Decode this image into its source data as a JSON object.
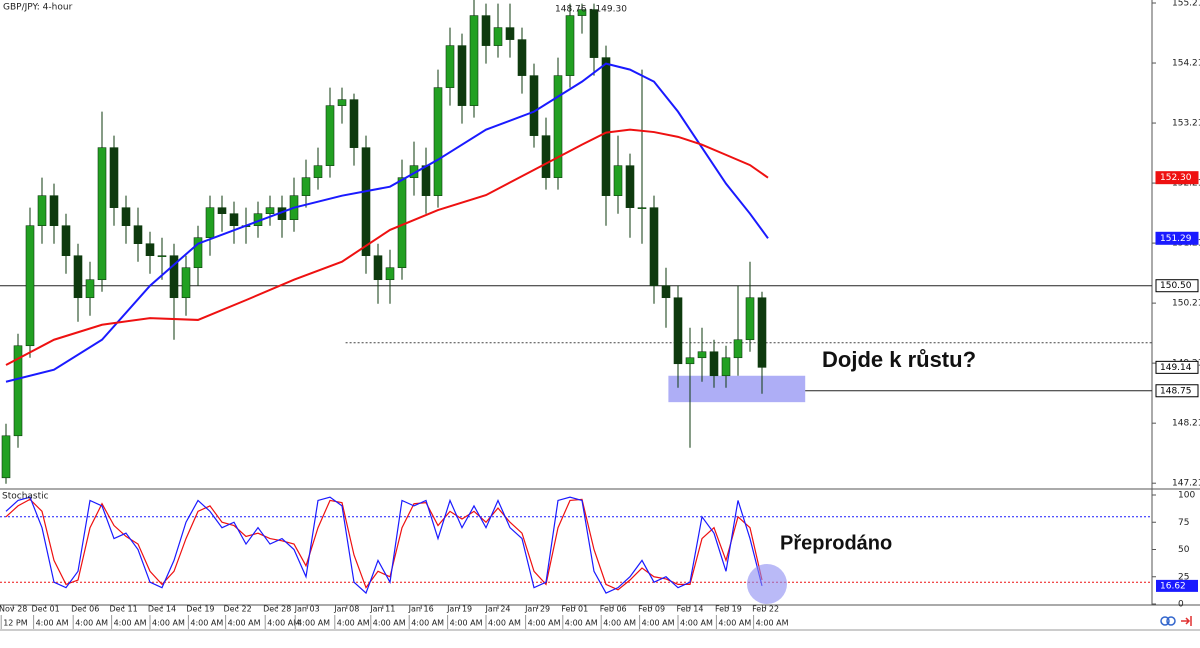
{
  "chart_data": [
    {
      "type": "candlestick",
      "title": "GBP/JPY: 4-hour",
      "annotation": "148.76 - 149.30",
      "callout": "Dojde k růstu?",
      "xlim": [
        0,
        96
      ],
      "ylim": [
        147.13,
        155.26
      ],
      "yticks": [
        155.21,
        154.21,
        153.21,
        152.21,
        151.21,
        150.21,
        149.21,
        148.21,
        147.21
      ],
      "up_color": "#22a022",
      "down_color": "#0e3a0e",
      "ohlc": [
        [
          147.3,
          148.2,
          147.2,
          148.0
        ],
        [
          148.0,
          149.7,
          147.8,
          149.5
        ],
        [
          149.5,
          151.8,
          149.3,
          151.5
        ],
        [
          151.5,
          152.3,
          151.2,
          152.0
        ],
        [
          152.0,
          152.2,
          151.2,
          151.5
        ],
        [
          151.5,
          151.7,
          150.7,
          151.0
        ],
        [
          151.0,
          151.2,
          149.9,
          150.3
        ],
        [
          150.3,
          150.9,
          150.0,
          150.6
        ],
        [
          150.6,
          153.4,
          150.4,
          152.8
        ],
        [
          152.8,
          153.0,
          151.5,
          151.8
        ],
        [
          151.8,
          152.0,
          151.2,
          151.5
        ],
        [
          151.5,
          151.8,
          150.9,
          151.2
        ],
        [
          151.2,
          151.4,
          150.7,
          151.0
        ],
        [
          151.0,
          151.3,
          150.6,
          151.0
        ],
        [
          151.0,
          151.2,
          149.6,
          150.3
        ],
        [
          150.3,
          151.0,
          150.0,
          150.8
        ],
        [
          150.8,
          151.5,
          150.5,
          151.3
        ],
        [
          151.3,
          152.0,
          151.0,
          151.8
        ],
        [
          151.8,
          152.0,
          151.4,
          151.7
        ],
        [
          151.7,
          151.9,
          151.2,
          151.5
        ],
        [
          151.5,
          151.8,
          151.2,
          151.5
        ],
        [
          151.5,
          151.9,
          151.3,
          151.7
        ],
        [
          151.7,
          152.0,
          151.5,
          151.8
        ],
        [
          151.8,
          152.0,
          151.3,
          151.6
        ],
        [
          151.6,
          152.3,
          151.4,
          152.0
        ],
        [
          152.0,
          152.6,
          151.8,
          152.3
        ],
        [
          152.3,
          152.8,
          152.1,
          152.5
        ],
        [
          152.5,
          153.8,
          152.3,
          153.5
        ],
        [
          153.5,
          153.8,
          153.2,
          153.6
        ],
        [
          153.6,
          153.7,
          152.5,
          152.8
        ],
        [
          152.8,
          153.0,
          150.7,
          151.0
        ],
        [
          151.0,
          151.2,
          150.2,
          150.6
        ],
        [
          150.6,
          151.1,
          150.2,
          150.8
        ],
        [
          150.8,
          152.6,
          150.6,
          152.3
        ],
        [
          152.3,
          152.9,
          152.0,
          152.5
        ],
        [
          152.5,
          152.8,
          151.7,
          152.0
        ],
        [
          152.0,
          154.1,
          151.8,
          153.8
        ],
        [
          153.8,
          154.8,
          153.5,
          154.5
        ],
        [
          154.5,
          154.7,
          153.2,
          153.5
        ],
        [
          153.5,
          155.3,
          153.3,
          155.0
        ],
        [
          155.0,
          155.2,
          154.2,
          154.5
        ],
        [
          154.5,
          155.2,
          154.3,
          154.8
        ],
        [
          154.8,
          155.2,
          154.3,
          154.6
        ],
        [
          154.6,
          154.8,
          153.7,
          154.0
        ],
        [
          154.0,
          154.2,
          152.8,
          153.0
        ],
        [
          153.0,
          153.3,
          152.1,
          152.3
        ],
        [
          152.3,
          154.3,
          152.1,
          154.0
        ],
        [
          154.0,
          155.2,
          153.8,
          155.0
        ],
        [
          155.0,
          155.2,
          154.7,
          155.1
        ],
        [
          155.1,
          155.2,
          154.0,
          154.3
        ],
        [
          154.3,
          154.5,
          151.5,
          152.0
        ],
        [
          152.0,
          153.0,
          151.7,
          152.5
        ],
        [
          152.5,
          152.7,
          151.3,
          151.8
        ],
        [
          151.8,
          154.1,
          151.2,
          151.8
        ],
        [
          151.8,
          152.0,
          150.2,
          150.5
        ],
        [
          150.5,
          150.8,
          149.8,
          150.3
        ],
        [
          150.3,
          150.5,
          148.8,
          149.2
        ],
        [
          149.2,
          149.8,
          147.8,
          149.3
        ],
        [
          149.3,
          149.8,
          148.9,
          149.4
        ],
        [
          149.4,
          149.6,
          148.8,
          149.0
        ],
        [
          149.0,
          149.5,
          148.8,
          149.3
        ],
        [
          149.3,
          150.5,
          149.0,
          149.6
        ],
        [
          149.6,
          150.9,
          149.4,
          150.3
        ],
        [
          150.3,
          150.4,
          148.7,
          149.14
        ]
      ],
      "moving_averages": [
        {
          "color": "#1a1aff",
          "x": [
            0.5,
            4.5,
            8.5,
            12.5,
            16.5,
            20.5,
            24.5,
            28.5,
            32.5,
            36.5,
            40.5,
            44.5,
            48.5,
            50.5,
            52.5,
            54.5,
            56.5,
            58.5,
            60.5,
            62.5,
            64.0
          ],
          "values": [
            148.9,
            149.1,
            149.6,
            150.5,
            151.2,
            151.5,
            151.8,
            152.0,
            152.15,
            152.6,
            153.1,
            153.4,
            153.9,
            154.2,
            154.1,
            153.9,
            153.4,
            152.8,
            152.2,
            151.7,
            151.29
          ]
        },
        {
          "color": "#ee1111",
          "x": [
            0.5,
            4.5,
            8.5,
            12.5,
            16.5,
            20.5,
            24.5,
            28.5,
            32.5,
            36.5,
            40.5,
            44.5,
            48.5,
            50.5,
            52.5,
            54.5,
            56.5,
            58.5,
            60.5,
            62.5,
            64.0
          ],
          "values": [
            149.18,
            149.6,
            149.85,
            149.96,
            149.93,
            150.26,
            150.6,
            150.9,
            151.43,
            151.76,
            152.01,
            152.43,
            152.85,
            153.05,
            153.1,
            153.06,
            152.98,
            152.85,
            152.68,
            152.51,
            152.3
          ]
        }
      ],
      "hlines": [
        {
          "value": 150.5,
          "style": "solid"
        },
        {
          "value": 148.75,
          "style": "solid",
          "x_start": 67.1
        },
        {
          "value": 149.55,
          "style": "dotted",
          "x_start": 28.8
        }
      ],
      "zone": {
        "x": [
          55.7,
          67.1
        ],
        "y": [
          148.56,
          149.0
        ],
        "color": "#8c8cf2"
      },
      "price_labels": [
        {
          "value": 152.3,
          "label": "152.30",
          "color": "#ee1111"
        },
        {
          "value": 151.29,
          "label": "151.29",
          "color": "#1a1aff"
        },
        {
          "value": 150.5,
          "label": "150.50",
          "color": "#000000"
        },
        {
          "value": 149.14,
          "label": "149.14",
          "color": "#000000"
        },
        {
          "value": 148.75,
          "label": "148.75",
          "color": "#000000"
        }
      ]
    },
    {
      "type": "stochastic",
      "title": "Stochastic",
      "callout": "Přeprodáno",
      "xlim": [
        0,
        96
      ],
      "ylim": [
        0,
        100
      ],
      "yticks": [
        100,
        75,
        50,
        25,
        0
      ],
      "levels": [
        {
          "value": 80,
          "color": "#1a1aff"
        },
        {
          "value": 20,
          "color": "#ee1111"
        }
      ],
      "series": [
        {
          "color": "#1a1aff",
          "values": [
            85,
            95,
            98,
            70,
            20,
            15,
            30,
            95,
            90,
            60,
            65,
            50,
            20,
            15,
            40,
            75,
            95,
            85,
            70,
            75,
            55,
            70,
            55,
            60,
            50,
            25,
            95,
            98,
            90,
            20,
            10,
            40,
            20,
            95,
            90,
            95,
            60,
            95,
            70,
            90,
            70,
            95,
            70,
            60,
            15,
            20,
            95,
            98,
            95,
            30,
            10,
            15,
            25,
            40,
            20,
            25,
            15,
            20,
            80,
            65,
            30,
            95,
            60,
            16.62
          ]
        },
        {
          "color": "#ee1111",
          "values": [
            80,
            90,
            96,
            85,
            40,
            18,
            22,
            70,
            92,
            72,
            62,
            55,
            30,
            18,
            30,
            60,
            85,
            90,
            75,
            72,
            62,
            65,
            60,
            58,
            55,
            35,
            70,
            95,
            93,
            45,
            15,
            30,
            25,
            70,
            92,
            93,
            72,
            85,
            78,
            85,
            75,
            88,
            75,
            65,
            30,
            18,
            70,
            95,
            96,
            50,
            18,
            13,
            22,
            33,
            25,
            23,
            18,
            18,
            60,
            70,
            40,
            80,
            70,
            22
          ]
        }
      ],
      "current_label": {
        "value": 16.62,
        "label": "16.62"
      },
      "xticks": [
        {
          "value": 1.1,
          "label": "Nov 28"
        },
        {
          "value": 3.8,
          "label": "Dec 01"
        },
        {
          "value": 7.1,
          "label": "Dec 06"
        },
        {
          "value": 10.3,
          "label": "Dec 11"
        },
        {
          "value": 13.5,
          "label": "Dec 14"
        },
        {
          "value": 16.7,
          "label": "Dec 19"
        },
        {
          "value": 19.8,
          "label": "Dec 22"
        },
        {
          "value": 23.1,
          "label": "Dec 28"
        },
        {
          "value": 25.6,
          "label": "Jan 03"
        },
        {
          "value": 28.9,
          "label": "Jan 08"
        },
        {
          "value": 31.9,
          "label": "Jan 11"
        },
        {
          "value": 35.1,
          "label": "Jan 16"
        },
        {
          "value": 38.3,
          "label": "Jan 19"
        },
        {
          "value": 41.5,
          "label": "Jan 24"
        },
        {
          "value": 44.8,
          "label": "Jan 29"
        },
        {
          "value": 47.9,
          "label": "Feb 01"
        },
        {
          "value": 51.1,
          "label": "Feb 06"
        },
        {
          "value": 54.3,
          "label": "Feb 09"
        },
        {
          "value": 57.5,
          "label": "Feb 14"
        },
        {
          "value": 60.7,
          "label": "Feb 19"
        },
        {
          "value": 63.8,
          "label": "Feb 22"
        }
      ],
      "time_labels": [
        "12 PM",
        "4:00 AM",
        "4:00 AM",
        "4:00 AM",
        "4:00 AM",
        "4:00 AM",
        "4:00 AM",
        "4:00 AM",
        "4:00 AM",
        "4:00 AM",
        "4:00 AM",
        "4:00 AM",
        "4:00 AM",
        "4:00 AM",
        "4:00 AM",
        "4:00 AM",
        "4:00 AM",
        "4:00 AM",
        "4:00 AM",
        "4:00 AM",
        "4:00 AM"
      ]
    }
  ]
}
